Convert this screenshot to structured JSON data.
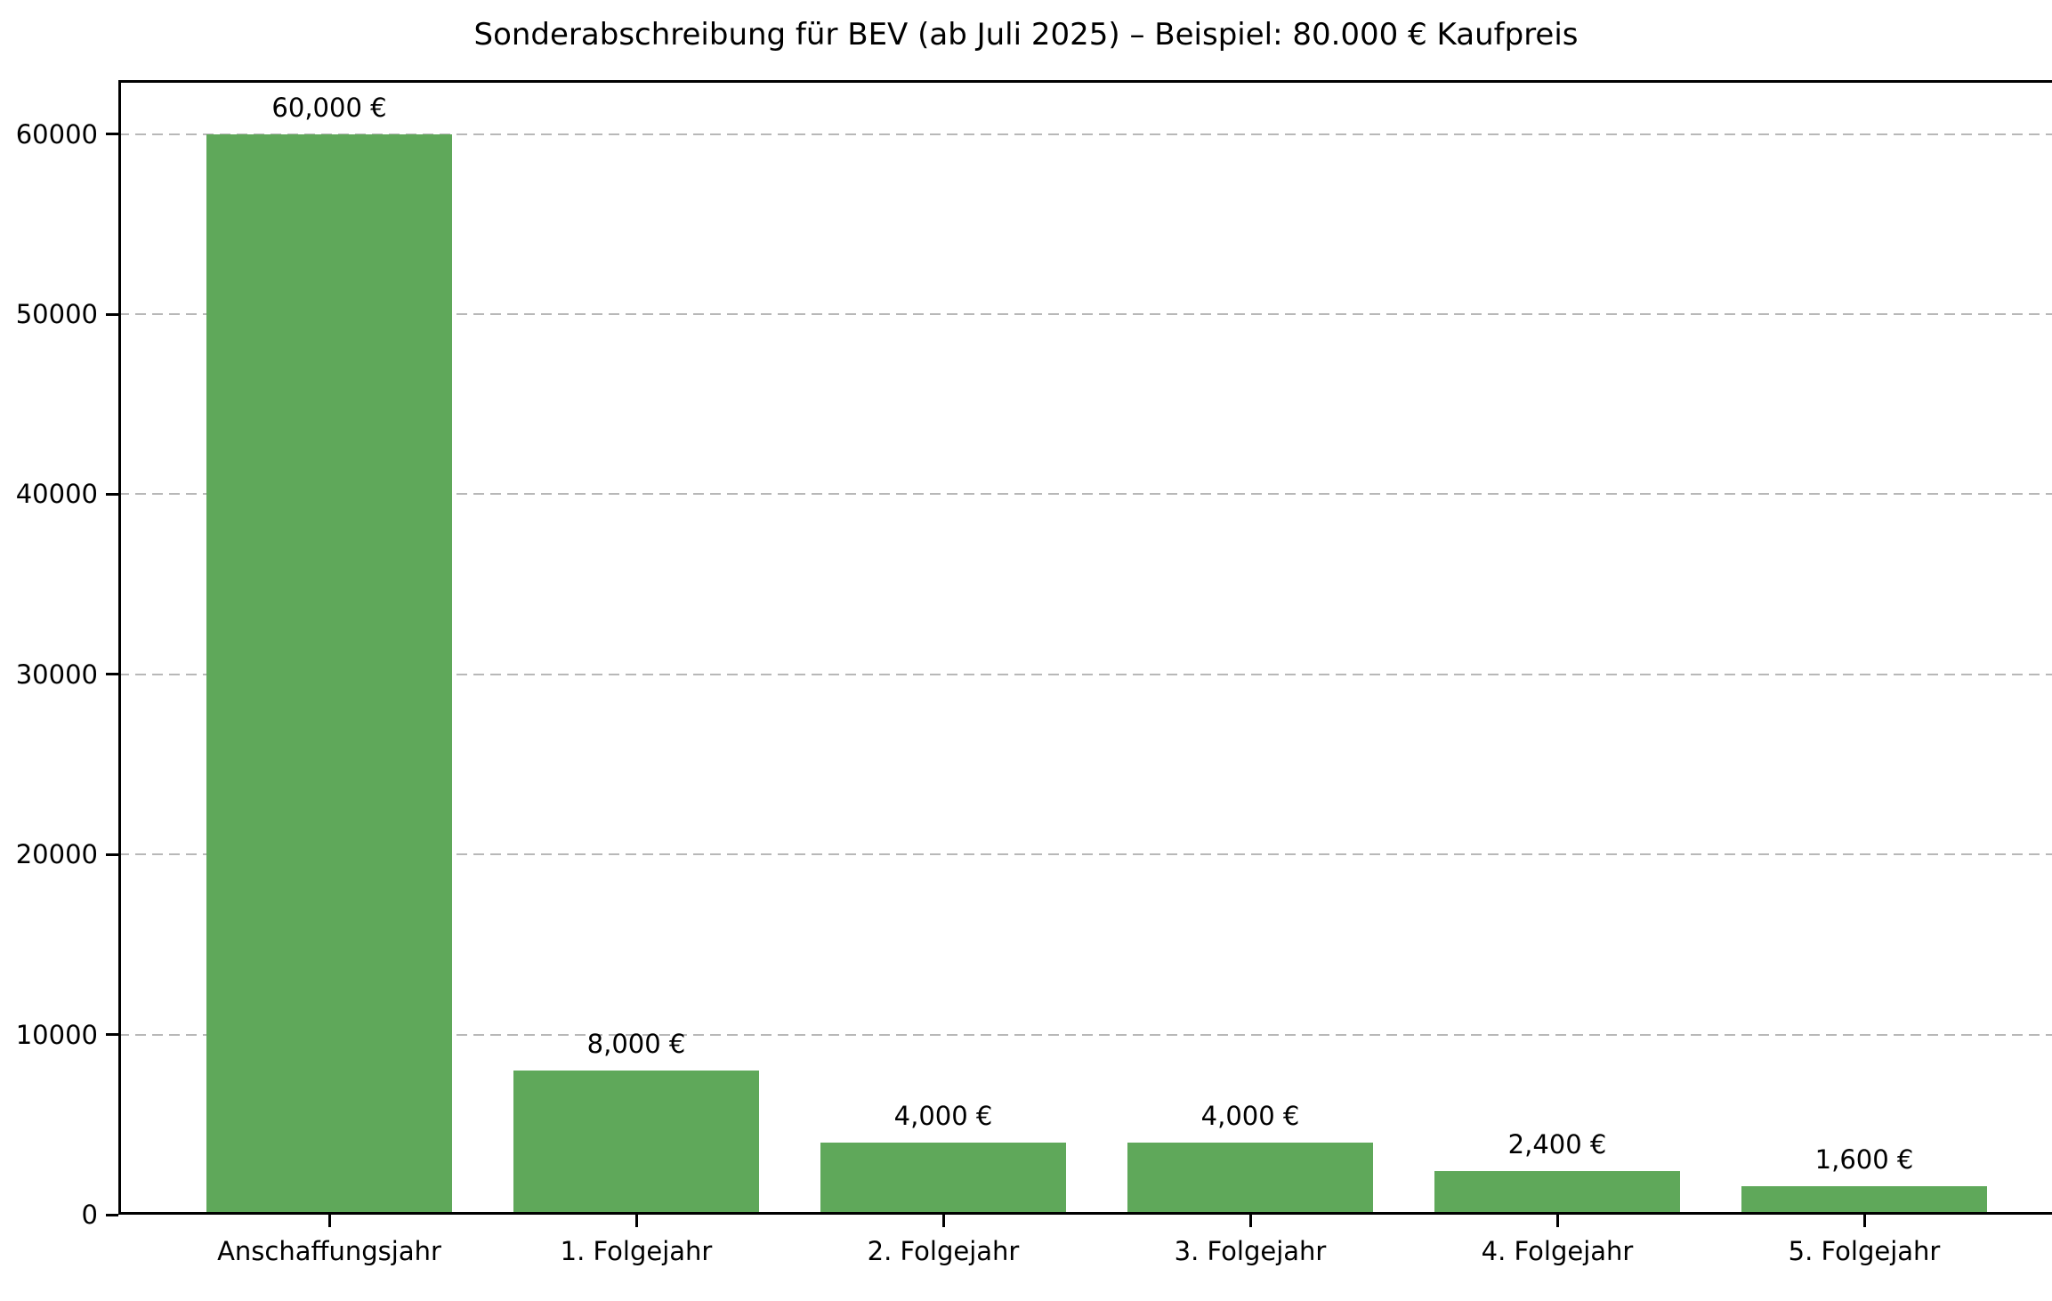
{
  "chart_data": {
    "type": "bar",
    "title": "Sonderabschreibung für BEV (ab Juli 2025) – Beispiel: 80.000 € Kaufpreis",
    "categories": [
      "Anschaffungsjahr",
      "1. Folgejahr",
      "2. Folgejahr",
      "3. Folgejahr",
      "4. Folgejahr",
      "5. Folgejahr"
    ],
    "values": [
      60000,
      8000,
      4000,
      4000,
      2400,
      1600
    ],
    "bar_labels": [
      "60,000 €",
      "8,000 €",
      "4,000 €",
      "4,000 €",
      "2,400 €",
      "1,600 €"
    ],
    "xlabel": "",
    "ylabel": "",
    "ylim": [
      0,
      63000
    ],
    "yticks": [
      0,
      10000,
      20000,
      30000,
      40000,
      50000,
      60000
    ],
    "grid": "horizontal-dashed",
    "legend": "none",
    "colors": {
      "bar": "#5fa85a",
      "grid": "#b8b8b8",
      "spine": "#000000",
      "text": "#000000",
      "background": "#ffffff"
    }
  }
}
